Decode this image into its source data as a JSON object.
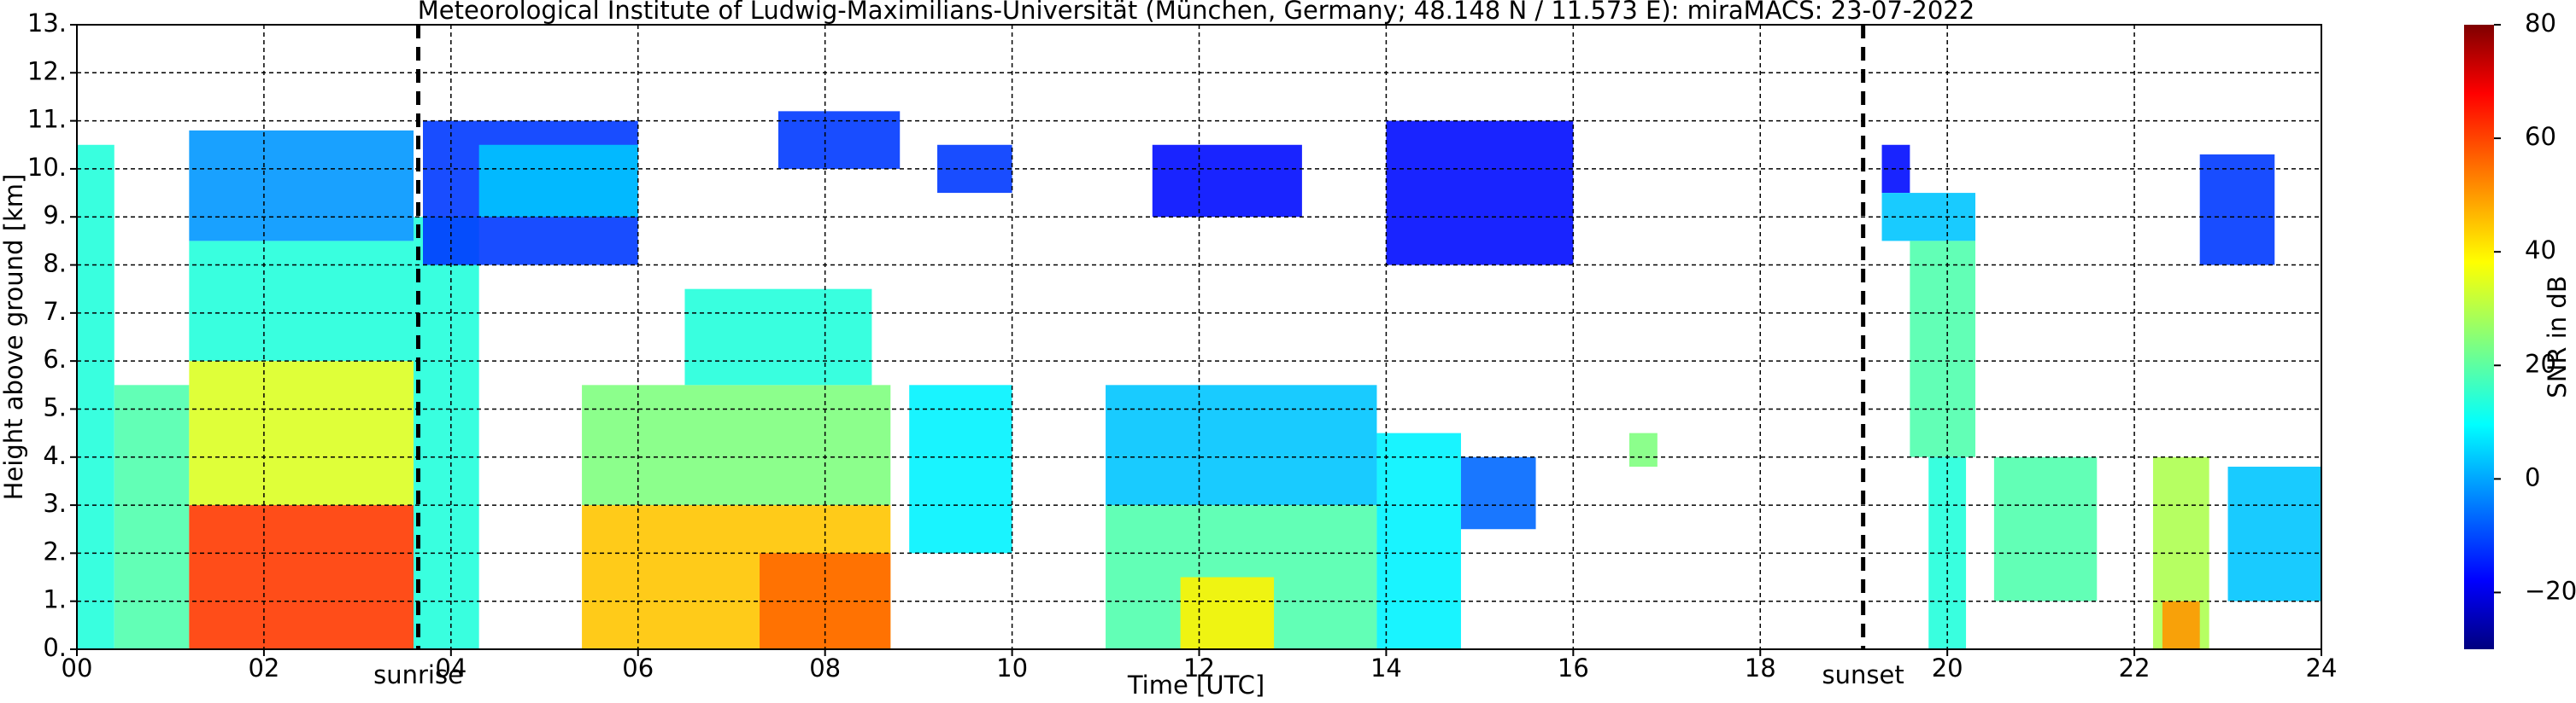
{
  "chart_data": {
    "type": "heatmap",
    "title": "Meteorological Institute of Ludwig-Maximilians-Universität (München, Germany; 48.148 N / 11.573 E):    miraMACS: 23-07-2022",
    "x_label": "Time [UTC]",
    "y_label": "Height above ground [km]",
    "colorbar_label": "SNR in dB",
    "colormap": "jet",
    "grid": true,
    "xlim": [
      0,
      24
    ],
    "xticks": [
      {
        "value": 0,
        "label": "00"
      },
      {
        "value": 2,
        "label": "02"
      },
      {
        "value": 4,
        "label": "04"
      },
      {
        "value": 6,
        "label": "06"
      },
      {
        "value": 8,
        "label": "08"
      },
      10,
      12,
      14,
      16,
      18,
      20,
      22,
      24
    ],
    "ylim": [
      0,
      13
    ],
    "yticks": [
      {
        "value": 0,
        "label": "0."
      },
      {
        "value": 1,
        "label": "1."
      },
      {
        "value": 2,
        "label": "2."
      },
      {
        "value": 3,
        "label": "3."
      },
      {
        "value": 4,
        "label": "4."
      },
      {
        "value": 5,
        "label": "5."
      },
      {
        "value": 6,
        "label": "6."
      },
      {
        "value": 7,
        "label": "7."
      },
      {
        "value": 8,
        "label": "8."
      },
      {
        "value": 9,
        "label": "9."
      },
      {
        "value": 10,
        "label": "10."
      },
      {
        "value": 11,
        "label": "11."
      },
      {
        "value": 12,
        "label": "12."
      },
      {
        "value": 13,
        "label": "13."
      }
    ],
    "clim": [
      -30,
      80
    ],
    "cticks": [
      {
        "value": -20,
        "label": "−20"
      },
      0,
      20,
      40,
      60,
      80
    ],
    "events": [
      {
        "label": "sunrise",
        "time": 3.65
      },
      {
        "label": "sunset",
        "time": 19.1
      }
    ],
    "cells": [
      [
        0.0,
        0.4,
        0,
        10.5,
        15
      ],
      [
        0.4,
        1.2,
        0,
        5.5,
        20
      ],
      [
        1.2,
        3.6,
        3,
        6,
        35
      ],
      [
        1.2,
        3.6,
        6,
        8.5,
        15
      ],
      [
        1.2,
        3.6,
        8.5,
        10.8,
        0
      ],
      [
        1.2,
        3.6,
        0,
        3,
        60
      ],
      [
        3.6,
        4.3,
        0,
        9,
        15
      ],
      [
        3.7,
        6.0,
        8,
        11,
        -10
      ],
      [
        4.3,
        6.0,
        9,
        10.5,
        5
      ],
      [
        5.4,
        8.7,
        3,
        5.5,
        25
      ],
      [
        5.4,
        8.7,
        0,
        3,
        45
      ],
      [
        6.5,
        8.5,
        5.5,
        7.5,
        15
      ],
      [
        7.3,
        8.7,
        0,
        2,
        55
      ],
      [
        7.5,
        8.8,
        10,
        11.2,
        -10
      ],
      [
        8.9,
        10.0,
        2,
        5.5,
        10
      ],
      [
        9.2,
        10.0,
        9.5,
        10.5,
        -10
      ],
      [
        11.0,
        13.9,
        3,
        5.5,
        5
      ],
      [
        11.0,
        13.9,
        0,
        3,
        20
      ],
      [
        11.8,
        12.8,
        0,
        1.5,
        40
      ],
      [
        13.9,
        14.8,
        0,
        4.5,
        10
      ],
      [
        14.8,
        15.6,
        2.5,
        4,
        -5
      ],
      [
        11.5,
        13.1,
        9,
        10.5,
        -15
      ],
      [
        14.0,
        16.0,
        8,
        11,
        -15
      ],
      [
        16.6,
        16.9,
        3.8,
        4.5,
        25
      ],
      [
        19.3,
        19.6,
        9.5,
        10.5,
        -15
      ],
      [
        19.3,
        20.3,
        8.5,
        9.5,
        5
      ],
      [
        19.6,
        20.3,
        4,
        8.5,
        20
      ],
      [
        19.8,
        20.2,
        0,
        4,
        15
      ],
      [
        20.5,
        21.6,
        1,
        4,
        20
      ],
      [
        22.2,
        22.8,
        0,
        4,
        30
      ],
      [
        22.3,
        22.7,
        0,
        1,
        50
      ],
      [
        23.0,
        24.0,
        1,
        3.8,
        5
      ],
      [
        22.7,
        23.5,
        8,
        10.3,
        -10
      ]
    ]
  }
}
